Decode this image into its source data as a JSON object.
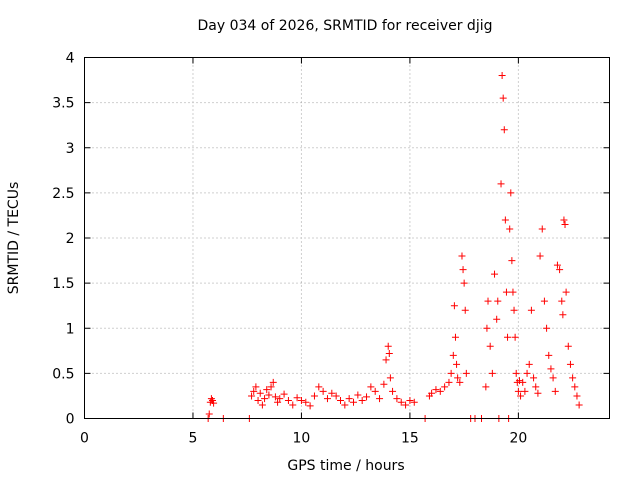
{
  "chart_data": {
    "type": "scatter",
    "title": "Day 034 of 2026, SRMTID for receiver djig",
    "xlabel": "GPS time / hours",
    "ylabel": "SRMTID / TECUs",
    "xlim": [
      0,
      24.2
    ],
    "ylim": [
      0,
      4
    ],
    "xticks": [
      0,
      5,
      10,
      15,
      20
    ],
    "xtick_labels": [
      "0",
      "5",
      "10",
      "15",
      "20"
    ],
    "yticks": [
      0,
      0.5,
      1,
      1.5,
      2,
      2.5,
      3,
      3.5,
      4
    ],
    "ytick_labels": [
      "0",
      "0.5",
      "1",
      "1.5",
      "2",
      "2.5",
      "3",
      "3.5",
      "4"
    ],
    "grid": true,
    "marker": "+",
    "color": "#ff0000",
    "series": [
      {
        "name": "SRMTID",
        "x": [
          5.7,
          5.75,
          5.8,
          5.85,
          5.9,
          5.95,
          6.4,
          7.6,
          7.7,
          7.8,
          7.9,
          8.0,
          8.1,
          8.2,
          8.3,
          8.4,
          8.5,
          8.6,
          8.7,
          8.8,
          8.9,
          9.0,
          9.2,
          9.4,
          9.6,
          9.8,
          10.0,
          10.2,
          10.4,
          10.6,
          10.8,
          11.0,
          11.2,
          11.4,
          11.6,
          11.8,
          12.0,
          12.2,
          12.4,
          12.6,
          12.8,
          13.0,
          13.2,
          13.4,
          13.6,
          13.8,
          13.9,
          14.0,
          14.05,
          14.1,
          14.2,
          14.4,
          14.6,
          14.8,
          15.0,
          15.2,
          15.7,
          15.9,
          16.0,
          16.2,
          16.4,
          16.6,
          16.8,
          16.9,
          17.0,
          17.05,
          17.1,
          17.15,
          17.2,
          17.3,
          17.4,
          17.45,
          17.5,
          17.55,
          17.6,
          17.8,
          18.0,
          18.3,
          18.5,
          18.55,
          18.6,
          18.7,
          18.8,
          18.9,
          19.0,
          19.05,
          19.1,
          19.2,
          19.25,
          19.3,
          19.35,
          19.4,
          19.45,
          19.5,
          19.55,
          19.6,
          19.65,
          19.7,
          19.75,
          19.8,
          19.85,
          19.9,
          19.95,
          20.0,
          20.05,
          20.1,
          20.2,
          20.3,
          20.4,
          20.5,
          20.6,
          20.7,
          20.8,
          20.9,
          21.0,
          21.1,
          21.2,
          21.3,
          21.4,
          21.5,
          21.6,
          21.7,
          21.8,
          21.9,
          22.0,
          22.05,
          22.1,
          22.15,
          22.2,
          22.3,
          22.4,
          22.5,
          22.6,
          22.7,
          22.8
        ],
        "y": [
          0.0,
          0.05,
          0.18,
          0.22,
          0.2,
          0.17,
          0.0,
          0.0,
          0.25,
          0.3,
          0.35,
          0.2,
          0.28,
          0.15,
          0.22,
          0.32,
          0.26,
          0.35,
          0.4,
          0.24,
          0.18,
          0.22,
          0.27,
          0.2,
          0.15,
          0.23,
          0.2,
          0.18,
          0.14,
          0.25,
          0.35,
          0.3,
          0.22,
          0.28,
          0.25,
          0.2,
          0.15,
          0.22,
          0.18,
          0.26,
          0.2,
          0.24,
          0.35,
          0.3,
          0.22,
          0.38,
          0.65,
          0.8,
          0.72,
          0.45,
          0.3,
          0.22,
          0.18,
          0.15,
          0.2,
          0.18,
          0.0,
          0.25,
          0.28,
          0.32,
          0.3,
          0.35,
          0.4,
          0.5,
          0.7,
          1.25,
          0.9,
          0.6,
          0.45,
          0.4,
          1.8,
          1.65,
          1.5,
          1.2,
          0.5,
          0.0,
          0.0,
          0.0,
          0.35,
          1.0,
          1.3,
          0.8,
          0.5,
          1.6,
          1.1,
          1.3,
          0.0,
          2.6,
          3.8,
          3.55,
          3.2,
          2.2,
          1.4,
          0.9,
          0.0,
          2.1,
          2.5,
          1.75,
          1.4,
          1.2,
          0.9,
          0.5,
          0.4,
          0.3,
          0.42,
          0.25,
          0.4,
          0.3,
          0.5,
          0.6,
          1.2,
          0.45,
          0.35,
          0.28,
          1.8,
          2.1,
          1.3,
          1.0,
          0.7,
          0.55,
          0.45,
          0.3,
          1.7,
          1.65,
          1.3,
          1.15,
          2.2,
          2.15,
          1.4,
          0.8,
          0.6,
          0.45,
          0.35,
          0.25,
          0.15
        ]
      }
    ]
  }
}
